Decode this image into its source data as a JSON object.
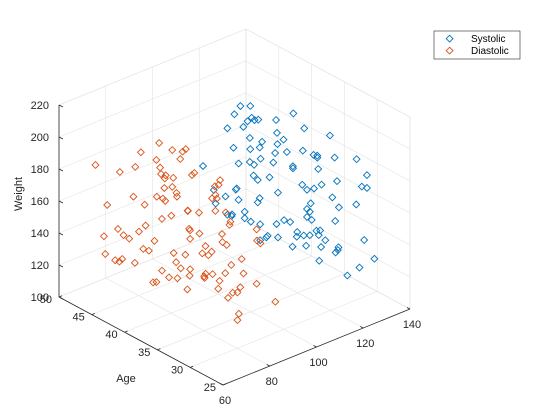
{
  "chart_data": {
    "type": "scatter",
    "subtype": "3d",
    "axes": {
      "x": {
        "label": "",
        "range": [
          60,
          140
        ],
        "ticks": [
          60,
          80,
          100,
          120,
          140
        ]
      },
      "y": {
        "label": "Age",
        "range": [
          25,
          50
        ],
        "ticks": [
          25,
          30,
          35,
          40,
          45,
          50
        ]
      },
      "z": {
        "label": "Weight",
        "range": [
          100,
          220
        ],
        "ticks": [
          100,
          120,
          140,
          160,
          180,
          200,
          220
        ]
      }
    },
    "grid": true,
    "legend": {
      "placement": "top-right",
      "entries": [
        "Systolic",
        "Diastolic"
      ]
    },
    "series": [
      {
        "name": "Systolic",
        "color": "#0072BD",
        "points": [
          [
            118,
            38,
            176
          ],
          [
            122,
            43,
            163
          ],
          [
            115,
            38,
            131
          ],
          [
            118,
            40,
            133
          ],
          [
            134,
            49,
            119
          ],
          [
            132,
            46,
            142
          ],
          [
            117,
            33,
            142
          ],
          [
            128,
            40,
            180
          ],
          [
            130,
            28,
            183
          ],
          [
            126,
            31,
            132
          ],
          [
            131,
            45,
            128
          ],
          [
            117,
            42,
            137
          ],
          [
            108,
            25,
            174
          ],
          [
            108,
            39,
            202
          ],
          [
            128,
            36,
            129
          ],
          [
            132,
            48,
            181
          ],
          [
            120,
            32,
            191
          ],
          [
            124,
            27,
            131
          ],
          [
            116,
            48,
            153
          ],
          [
            135,
            41,
            190
          ],
          [
            130,
            28,
            175
          ],
          [
            113,
            45,
            138
          ],
          [
            120,
            41,
            195
          ],
          [
            111,
            31,
            203
          ],
          [
            114,
            33,
            143
          ],
          [
            136,
            40,
            147
          ],
          [
            134,
            31,
            184
          ],
          [
            118,
            31,
            130
          ],
          [
            126,
            27,
            147
          ],
          [
            130,
            48,
            130
          ],
          [
            115,
            29,
            149
          ],
          [
            122,
            45,
            142
          ],
          [
            124,
            43,
            188
          ],
          [
            125,
            27,
            181
          ],
          [
            117,
            44,
            130
          ],
          [
            121,
            37,
            183
          ],
          [
            116,
            26,
            133
          ],
          [
            117,
            36,
            145
          ],
          [
            115,
            39,
            185
          ],
          [
            114,
            31,
            163
          ],
          [
            120,
            44,
            161
          ],
          [
            119,
            31,
            177
          ],
          [
            125,
            31,
            131
          ],
          [
            120,
            42,
            194
          ],
          [
            121,
            43,
            189
          ],
          [
            114,
            34,
            150
          ],
          [
            118,
            45,
            128
          ],
          [
            115,
            27,
            149
          ],
          [
            121,
            42,
            164
          ],
          [
            117,
            42,
            133
          ],
          [
            128,
            41,
            182
          ],
          [
            115,
            34,
            134
          ],
          [
            120,
            34,
            205
          ],
          [
            117,
            25,
            179
          ],
          [
            116,
            39,
            188
          ],
          [
            124,
            41,
            120
          ],
          [
            118,
            45,
            182
          ],
          [
            122,
            43,
            178
          ],
          [
            122,
            40,
            160
          ],
          [
            118,
            29,
            174
          ],
          [
            118,
            40,
            123
          ],
          [
            115,
            30,
            150
          ],
          [
            124,
            35,
            162
          ],
          [
            129,
            44,
            134
          ],
          [
            125,
            44,
            167
          ],
          [
            120,
            46,
            136
          ],
          [
            127,
            35,
            161
          ],
          [
            124,
            33,
            141
          ],
          [
            121,
            41,
            170
          ],
          [
            131,
            42,
            171
          ],
          [
            118,
            33,
            135
          ],
          [
            136,
            29,
            125
          ],
          [
            115,
            43,
            176
          ],
          [
            128,
            35,
            134
          ],
          [
            120,
            45,
            127
          ],
          [
            121,
            45,
            189
          ],
          [
            124,
            35,
            150
          ],
          [
            122,
            39,
            198
          ],
          [
            124,
            34,
            186
          ],
          [
            126,
            35,
            142
          ],
          [
            125,
            44,
            194
          ],
          [
            117,
            34,
            142
          ],
          [
            120,
            38,
            128
          ],
          [
            132,
            40,
            161
          ],
          [
            134,
            37,
            173
          ],
          [
            120,
            29,
            183
          ],
          [
            115,
            46,
            143
          ],
          [
            130,
            42,
            166
          ],
          [
            116,
            30,
            142
          ],
          [
            126,
            34,
            176
          ],
          [
            134,
            38,
            141
          ],
          [
            120,
            38,
            156
          ],
          [
            131,
            45,
            142
          ],
          [
            131,
            34,
            194
          ],
          [
            114,
            40,
            137
          ],
          [
            118,
            35,
            179
          ],
          [
            124,
            35,
            145
          ],
          [
            133,
            34,
            179
          ],
          [
            118,
            28,
            170
          ],
          [
            125,
            40,
            129
          ]
        ]
      },
      {
        "name": "Diastolic",
        "color": "#D95319",
        "points": [
          [
            93,
            38,
            176
          ],
          [
            77,
            43,
            163
          ],
          [
            68,
            38,
            131
          ],
          [
            86,
            40,
            133
          ],
          [
            77,
            49,
            119
          ],
          [
            68,
            46,
            142
          ],
          [
            86,
            33,
            142
          ],
          [
            77,
            40,
            180
          ],
          [
            68,
            28,
            183
          ],
          [
            81,
            31,
            132
          ],
          [
            82,
            45,
            128
          ],
          [
            76,
            42,
            137
          ],
          [
            68,
            25,
            174
          ],
          [
            82,
            39,
            202
          ],
          [
            83,
            36,
            129
          ],
          [
            70,
            48,
            181
          ],
          [
            77,
            32,
            191
          ],
          [
            88,
            27,
            131
          ],
          [
            75,
            48,
            153
          ],
          [
            78,
            41,
            190
          ],
          [
            70,
            28,
            175
          ],
          [
            76,
            45,
            138
          ],
          [
            89,
            41,
            195
          ],
          [
            75,
            31,
            203
          ],
          [
            75,
            33,
            143
          ],
          [
            88,
            40,
            147
          ],
          [
            78,
            31,
            184
          ],
          [
            79,
            31,
            130
          ],
          [
            80,
            27,
            147
          ],
          [
            82,
            48,
            130
          ],
          [
            80,
            29,
            149
          ],
          [
            90,
            45,
            142
          ],
          [
            82,
            43,
            188
          ],
          [
            80,
            27,
            181
          ],
          [
            69,
            44,
            130
          ],
          [
            74,
            37,
            183
          ],
          [
            69,
            26,
            133
          ],
          [
            82,
            36,
            145
          ],
          [
            86,
            39,
            185
          ],
          [
            72,
            31,
            163
          ],
          [
            85,
            44,
            161
          ],
          [
            80,
            31,
            177
          ],
          [
            83,
            31,
            131
          ],
          [
            86,
            42,
            194
          ],
          [
            73,
            43,
            189
          ],
          [
            79,
            34,
            150
          ],
          [
            70,
            45,
            128
          ],
          [
            73,
            27,
            149
          ],
          [
            83,
            42,
            164
          ],
          [
            70,
            42,
            133
          ],
          [
            80,
            41,
            182
          ],
          [
            70,
            34,
            134
          ],
          [
            73,
            34,
            205
          ],
          [
            76,
            25,
            179
          ],
          [
            78,
            39,
            188
          ],
          [
            75,
            41,
            120
          ],
          [
            72,
            45,
            182
          ],
          [
            84,
            43,
            178
          ],
          [
            87,
            40,
            160
          ],
          [
            71,
            29,
            174
          ],
          [
            79,
            40,
            123
          ],
          [
            75,
            30,
            150
          ],
          [
            78,
            35,
            162
          ],
          [
            84,
            44,
            134
          ],
          [
            75,
            44,
            167
          ],
          [
            83,
            46,
            136
          ],
          [
            74,
            35,
            161
          ],
          [
            78,
            33,
            141
          ],
          [
            85,
            41,
            170
          ],
          [
            86,
            42,
            171
          ],
          [
            81,
            33,
            135
          ],
          [
            78,
            29,
            125
          ],
          [
            86,
            43,
            176
          ],
          [
            80,
            35,
            134
          ],
          [
            73,
            45,
            127
          ],
          [
            81,
            45,
            189
          ],
          [
            68,
            35,
            150
          ],
          [
            81,
            39,
            198
          ],
          [
            82,
            34,
            186
          ],
          [
            74,
            35,
            142
          ],
          [
            86,
            44,
            194
          ],
          [
            71,
            34,
            142
          ],
          [
            77,
            38,
            128
          ],
          [
            80,
            40,
            161
          ],
          [
            89,
            37,
            173
          ],
          [
            74,
            29,
            183
          ],
          [
            74,
            46,
            143
          ],
          [
            82,
            42,
            166
          ],
          [
            72,
            30,
            142
          ],
          [
            82,
            34,
            176
          ],
          [
            89,
            38,
            141
          ],
          [
            82,
            38,
            156
          ],
          [
            83,
            45,
            142
          ],
          [
            84,
            34,
            194
          ],
          [
            81,
            40,
            137
          ],
          [
            73,
            35,
            179
          ],
          [
            70,
            35,
            145
          ],
          [
            75,
            34,
            179
          ],
          [
            83,
            28,
            170
          ],
          [
            76,
            40,
            129
          ]
        ]
      }
    ]
  }
}
